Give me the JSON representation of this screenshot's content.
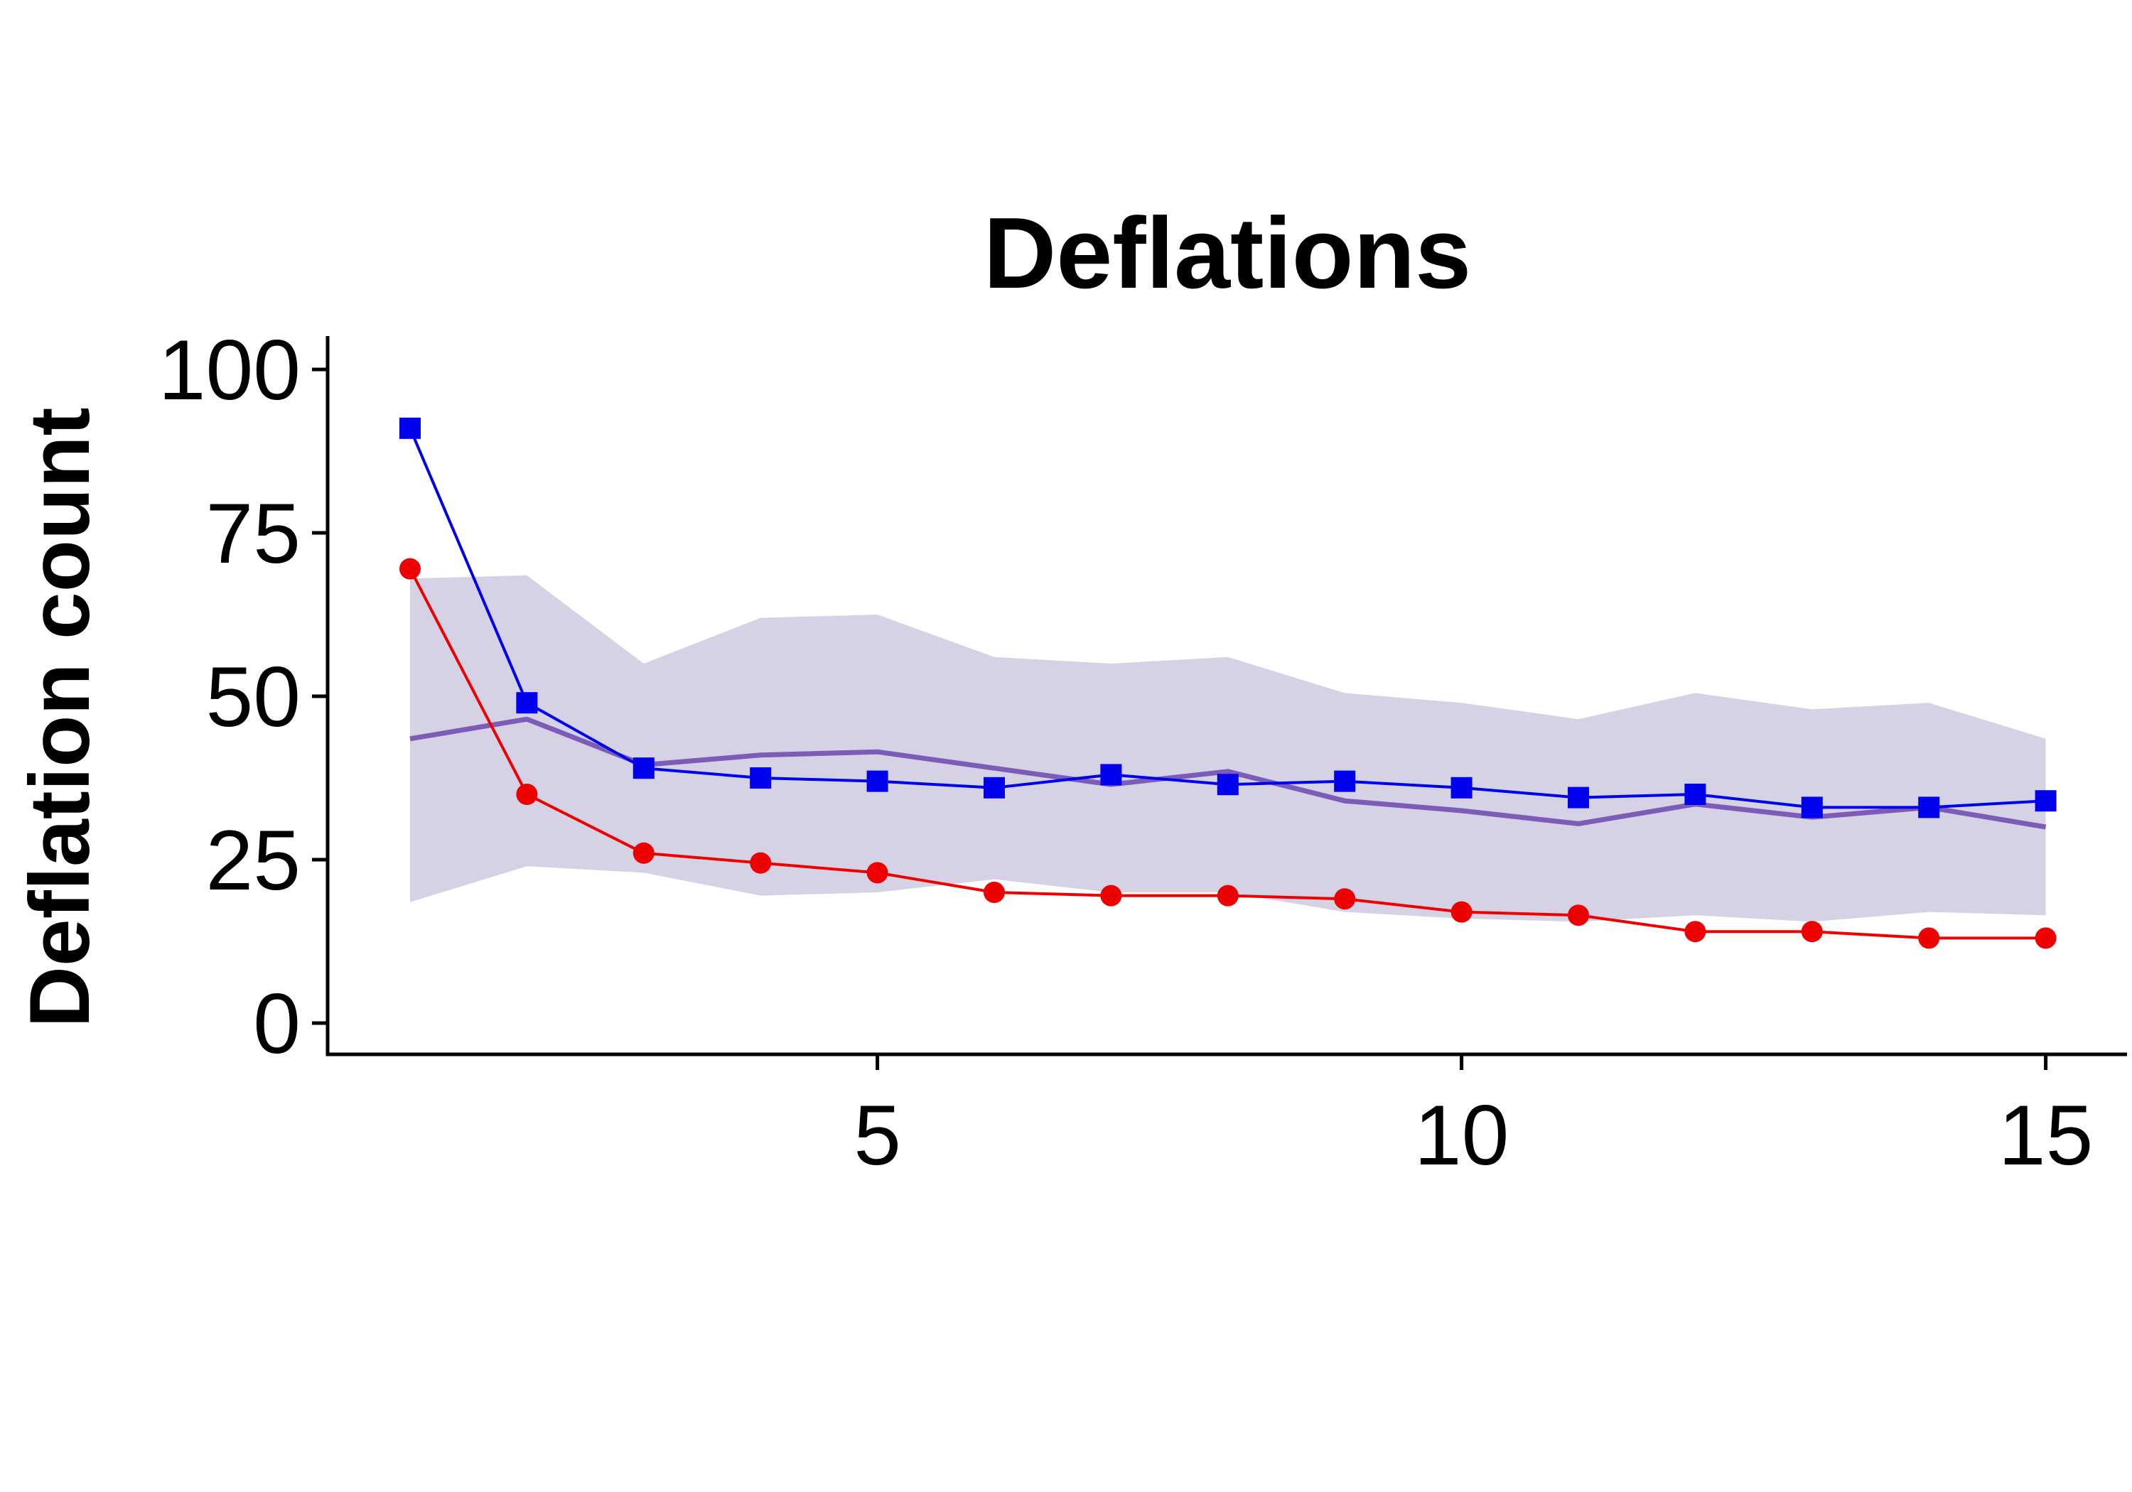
{
  "chart_data": {
    "type": "line",
    "title": "Deflations",
    "xlabel": "",
    "ylabel": "Deflation count",
    "xlim": [
      0.25,
      15.6
    ],
    "ylim": [
      -5,
      105
    ],
    "xticks": [
      5,
      10,
      15
    ],
    "yticks": [
      0,
      25,
      50,
      75,
      100
    ],
    "grid": false,
    "legend": "none",
    "x": [
      1,
      2,
      3,
      4,
      5,
      6,
      7,
      8,
      9,
      10,
      11,
      12,
      13,
      14,
      15
    ],
    "band": {
      "color": "#d6d2e6",
      "upper": [
        68,
        68.5,
        55,
        62,
        62.5,
        56,
        55,
        56,
        50.5,
        49,
        46.5,
        50.5,
        48,
        49,
        43.5
      ],
      "lower": [
        18.5,
        24,
        23,
        19.5,
        20,
        22,
        20,
        20,
        17,
        16,
        15.5,
        16.5,
        15.5,
        17,
        16.5
      ]
    },
    "series": [
      {
        "color": "#0000ee",
        "marker": "square",
        "values": [
          91,
          49,
          39,
          37.5,
          37,
          36,
          38,
          36.5,
          37,
          36,
          34.5,
          35,
          33,
          33,
          34
        ]
      },
      {
        "color": "#ee0000",
        "marker": "circle",
        "values": [
          69.5,
          35,
          26,
          24.5,
          23,
          20,
          19.5,
          19.5,
          19,
          17,
          16.5,
          14,
          14,
          13,
          13
        ]
      },
      {
        "color": "#7d5cb8",
        "marker": "none",
        "values": [
          43.5,
          46.5,
          39.5,
          41,
          41.5,
          39,
          36.5,
          38.5,
          34,
          32.5,
          30.5,
          33.5,
          31.5,
          33,
          30
        ]
      }
    ]
  }
}
